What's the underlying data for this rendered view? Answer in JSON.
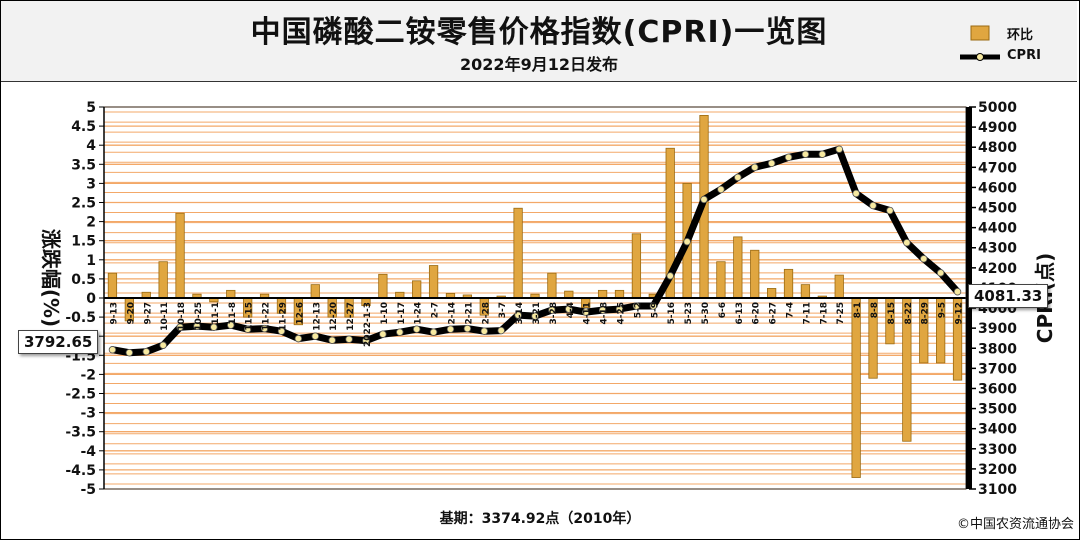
{
  "header": {
    "title": "中国磷酸二铵零售价格指数(CPRI)一览图",
    "subtitle": "2022年9月12日发布"
  },
  "legend": {
    "bar_label": "环比",
    "line_label": "CPRI"
  },
  "footer": {
    "base": "基期：3374.92点（2010年）",
    "copyright": "©中国农资流通协会"
  },
  "callouts": {
    "first_value": "3792.65",
    "last_value": "4081.33"
  },
  "colors": {
    "bar_fill": "#e0a640",
    "bar_edge": "#9a6a12",
    "line": "#000000",
    "grid_line": "#f3a868",
    "plot_bg": "#ffffff",
    "marker_fill": "#f7e9a0",
    "header_bg": "#f2f2f2"
  },
  "chart_data": {
    "type": "bar",
    "categories": [
      "9-13",
      "9-20",
      "9-27",
      "10-11",
      "10-18",
      "10-25",
      "11-1",
      "11-8",
      "11-15",
      "11-22",
      "11-29",
      "12-6",
      "12-13",
      "12-20",
      "12-27",
      "2022-1-3",
      "1-10",
      "1-17",
      "1-24",
      "2-7",
      "2-14",
      "2-21",
      "2-28",
      "3-7",
      "3-14",
      "3-21",
      "3-28",
      "4-4",
      "4-11",
      "4-18",
      "4-25",
      "5-2",
      "5-9",
      "5-16",
      "5-23",
      "5-30",
      "6-6",
      "6-13",
      "6-20",
      "6-27",
      "7-4",
      "7-11",
      "7-18",
      "7-25",
      "8-1",
      "8-8",
      "8-15",
      "8-22",
      "8-29",
      "9-5",
      "9-12"
    ],
    "series": [
      {
        "name": "环比",
        "type": "bar",
        "axis": "left",
        "values": [
          0.65,
          -0.6,
          0.15,
          0.95,
          2.22,
          0.1,
          -0.1,
          0.2,
          -0.5,
          0.1,
          -0.4,
          -0.7,
          0.35,
          -0.5,
          -0.5,
          -0.2,
          0.62,
          0.15,
          0.45,
          0.85,
          0.12,
          0.08,
          -0.45,
          0.05,
          2.35,
          0.1,
          0.65,
          0.18,
          -0.25,
          0.2,
          0.2,
          1.68,
          0.1,
          3.92,
          3.0,
          4.78,
          0.95,
          1.6,
          1.25,
          0.25,
          0.75,
          0.35,
          0.05,
          0.6,
          -4.7,
          -2.1,
          -1.2,
          -3.75,
          -1.7,
          -1.7,
          -2.15
        ]
      },
      {
        "name": "CPRI",
        "type": "line",
        "axis": "right",
        "values": [
          3792.65,
          3778,
          3783,
          3815,
          3905,
          3910,
          3905,
          3915,
          3895,
          3898,
          3885,
          3848,
          3860,
          3840,
          3845,
          3838,
          3870,
          3880,
          3895,
          3880,
          3895,
          3898,
          3885,
          3888,
          3965,
          3960,
          3990,
          3995,
          3980,
          3990,
          3995,
          4010,
          4010,
          4160,
          4330,
          4540,
          4590,
          4650,
          4700,
          4720,
          4750,
          4765,
          4765,
          4790,
          4570,
          4510,
          4485,
          4325,
          4245,
          4175,
          4081.33
        ]
      }
    ],
    "ylabel_left": "涨跌幅(%)",
    "ylabel_right": "CPRI(点)",
    "ylim_left": [
      -5,
      5
    ],
    "ylim_right": [
      3100,
      5000
    ],
    "yticks_left": [
      "5",
      "4.5",
      "4",
      "3.5",
      "3",
      "2.5",
      "2",
      "1.5",
      "1",
      "0.5",
      "0",
      "-0.5",
      "-1",
      "-1.5",
      "-2",
      "-2.5",
      "-3",
      "-3.5",
      "-4",
      "-4.5",
      "-5"
    ],
    "yticks_right": [
      "5000",
      "4900",
      "4800",
      "4700",
      "4600",
      "4500",
      "4400",
      "4300",
      "4200",
      "4100",
      "4000",
      "3900",
      "3800",
      "3700",
      "3600",
      "3500",
      "3400",
      "3300",
      "3200",
      "3100"
    ],
    "grid": true
  }
}
